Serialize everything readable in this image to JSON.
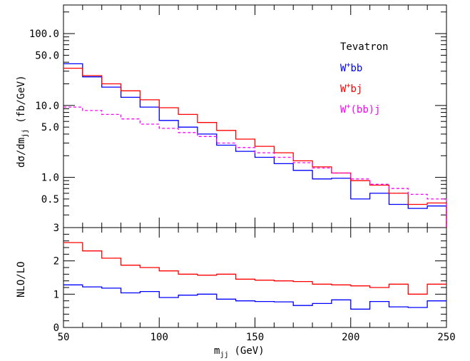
{
  "chart_data": [
    {
      "type": "line",
      "panel": "top",
      "ylabel_main": "dσ/dm",
      "ylabel_sub": "jj",
      "ylabel_unit": "(fb/GeV)",
      "yscale": "log",
      "ylim": [
        0.2,
        250
      ],
      "xlim": [
        50,
        250
      ],
      "ytick_labels": [
        "0.5",
        "1.0",
        "5.0",
        "10.0",
        "50.0",
        "100.0"
      ],
      "ytick_values": [
        0.5,
        1.0,
        5.0,
        10.0,
        50.0,
        100.0
      ],
      "legend_header": "Tevatron",
      "bin_edges": [
        50,
        60,
        70,
        80,
        90,
        100,
        110,
        120,
        130,
        140,
        150,
        160,
        170,
        180,
        190,
        200,
        210,
        220,
        230,
        240,
        250
      ],
      "series": [
        {
          "legend_prefix": "W",
          "legend_sup": "+",
          "legend_suffix": "bb",
          "color": "#0000ff",
          "dash": "solid",
          "values": [
            38,
            25,
            18,
            13,
            9.5,
            6.2,
            5.0,
            4.0,
            2.8,
            2.3,
            1.9,
            1.55,
            1.25,
            0.95,
            0.97,
            0.5,
            0.6,
            0.42,
            0.37,
            0.4
          ]
        },
        {
          "legend_prefix": "W",
          "legend_sup": "+",
          "legend_suffix": "bj",
          "color": "#ff0000",
          "dash": "solid",
          "values": [
            33,
            26,
            20,
            16,
            12,
            9.3,
            7.5,
            5.8,
            4.5,
            3.4,
            2.7,
            2.2,
            1.7,
            1.4,
            1.15,
            0.9,
            0.78,
            0.6,
            0.42,
            0.44
          ]
        },
        {
          "legend_prefix": "W",
          "legend_sup": "+",
          "legend_suffix": "(bb)j",
          "color": "#ff00ff",
          "dash": "dashed",
          "values": [
            9.5,
            8.5,
            7.5,
            6.5,
            5.5,
            4.8,
            4.2,
            3.7,
            3.0,
            2.6,
            2.2,
            1.9,
            1.6,
            1.35,
            1.15,
            0.95,
            0.8,
            0.7,
            0.58,
            0.5
          ]
        }
      ]
    },
    {
      "type": "line",
      "panel": "bottom",
      "ylabel": "NLO/LO",
      "xlabel_main": "m",
      "xlabel_sub": "jj",
      "xlabel_unit": "(GeV)",
      "ylim": [
        0,
        3
      ],
      "xlim": [
        50,
        250
      ],
      "ytick_labels": [
        "0",
        "1",
        "2",
        "3"
      ],
      "xtick_labels": [
        "50",
        "100",
        "150",
        "200",
        "250"
      ],
      "xtick_values": [
        50,
        100,
        150,
        200,
        250
      ],
      "bin_edges": [
        50,
        60,
        70,
        80,
        90,
        100,
        110,
        120,
        130,
        140,
        150,
        160,
        170,
        180,
        190,
        200,
        210,
        220,
        230,
        240,
        250
      ],
      "series": [
        {
          "color": "#ff0000",
          "dash": "solid",
          "values": [
            2.55,
            2.3,
            2.08,
            1.87,
            1.8,
            1.7,
            1.6,
            1.57,
            1.6,
            1.45,
            1.42,
            1.4,
            1.38,
            1.3,
            1.28,
            1.25,
            1.2,
            1.3,
            1.0,
            1.3
          ]
        },
        {
          "color": "#0000ff",
          "dash": "solid",
          "values": [
            1.28,
            1.22,
            1.18,
            1.04,
            1.08,
            0.9,
            0.97,
            1.0,
            0.85,
            0.8,
            0.78,
            0.77,
            0.66,
            0.72,
            0.83,
            0.55,
            0.78,
            0.62,
            0.6,
            0.8
          ]
        }
      ]
    }
  ]
}
